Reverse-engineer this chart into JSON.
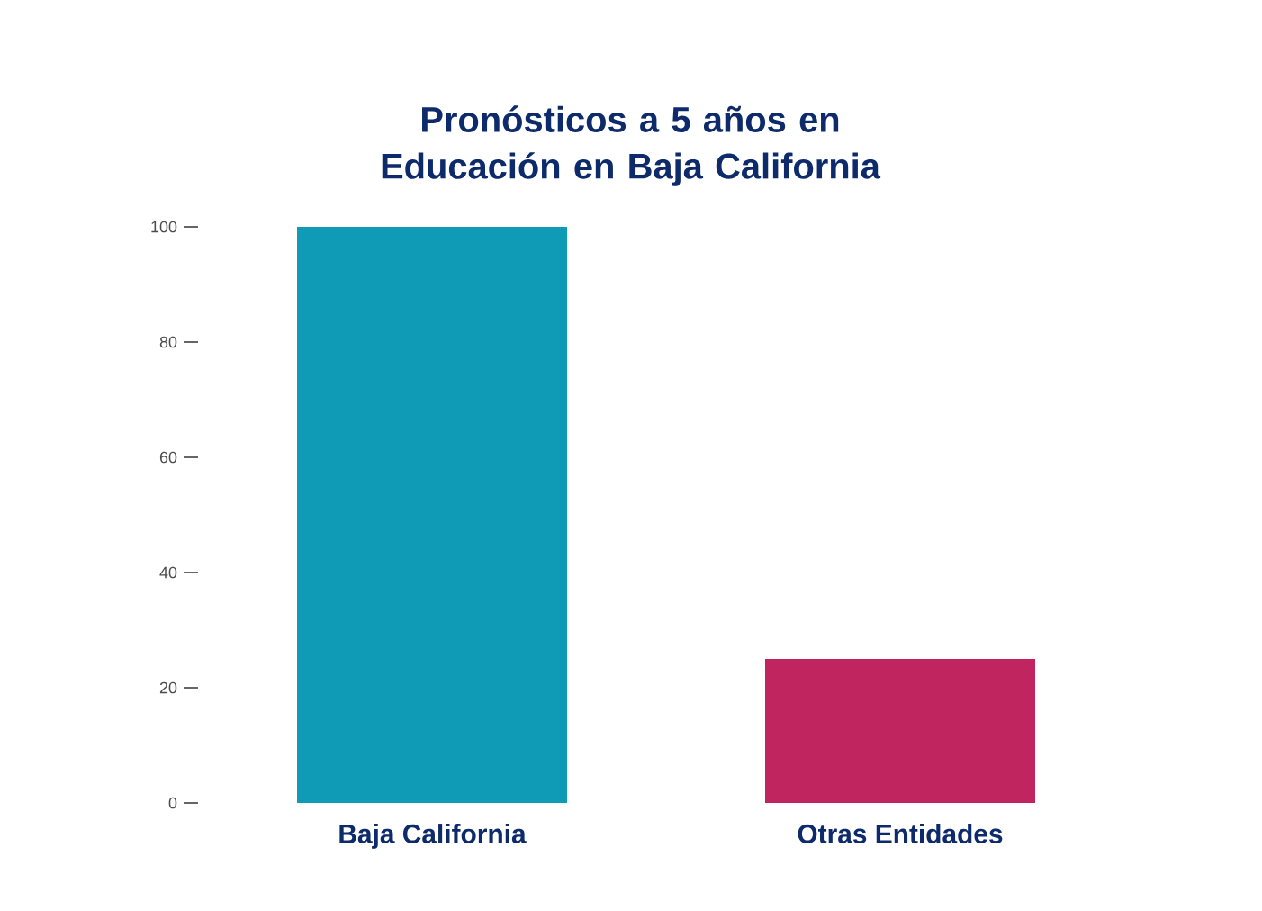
{
  "chart_data": {
    "type": "bar",
    "title": "Pronósticos a 5 años en Educación en Baja California",
    "categories": [
      "Baja California",
      "Otras Entidades"
    ],
    "values": [
      100,
      25
    ],
    "colors": [
      "#0f9bb5",
      "#c0255f"
    ],
    "ylim": [
      0,
      100
    ],
    "yticks": [
      0,
      20,
      40,
      60,
      80,
      100
    ],
    "grid": false
  }
}
